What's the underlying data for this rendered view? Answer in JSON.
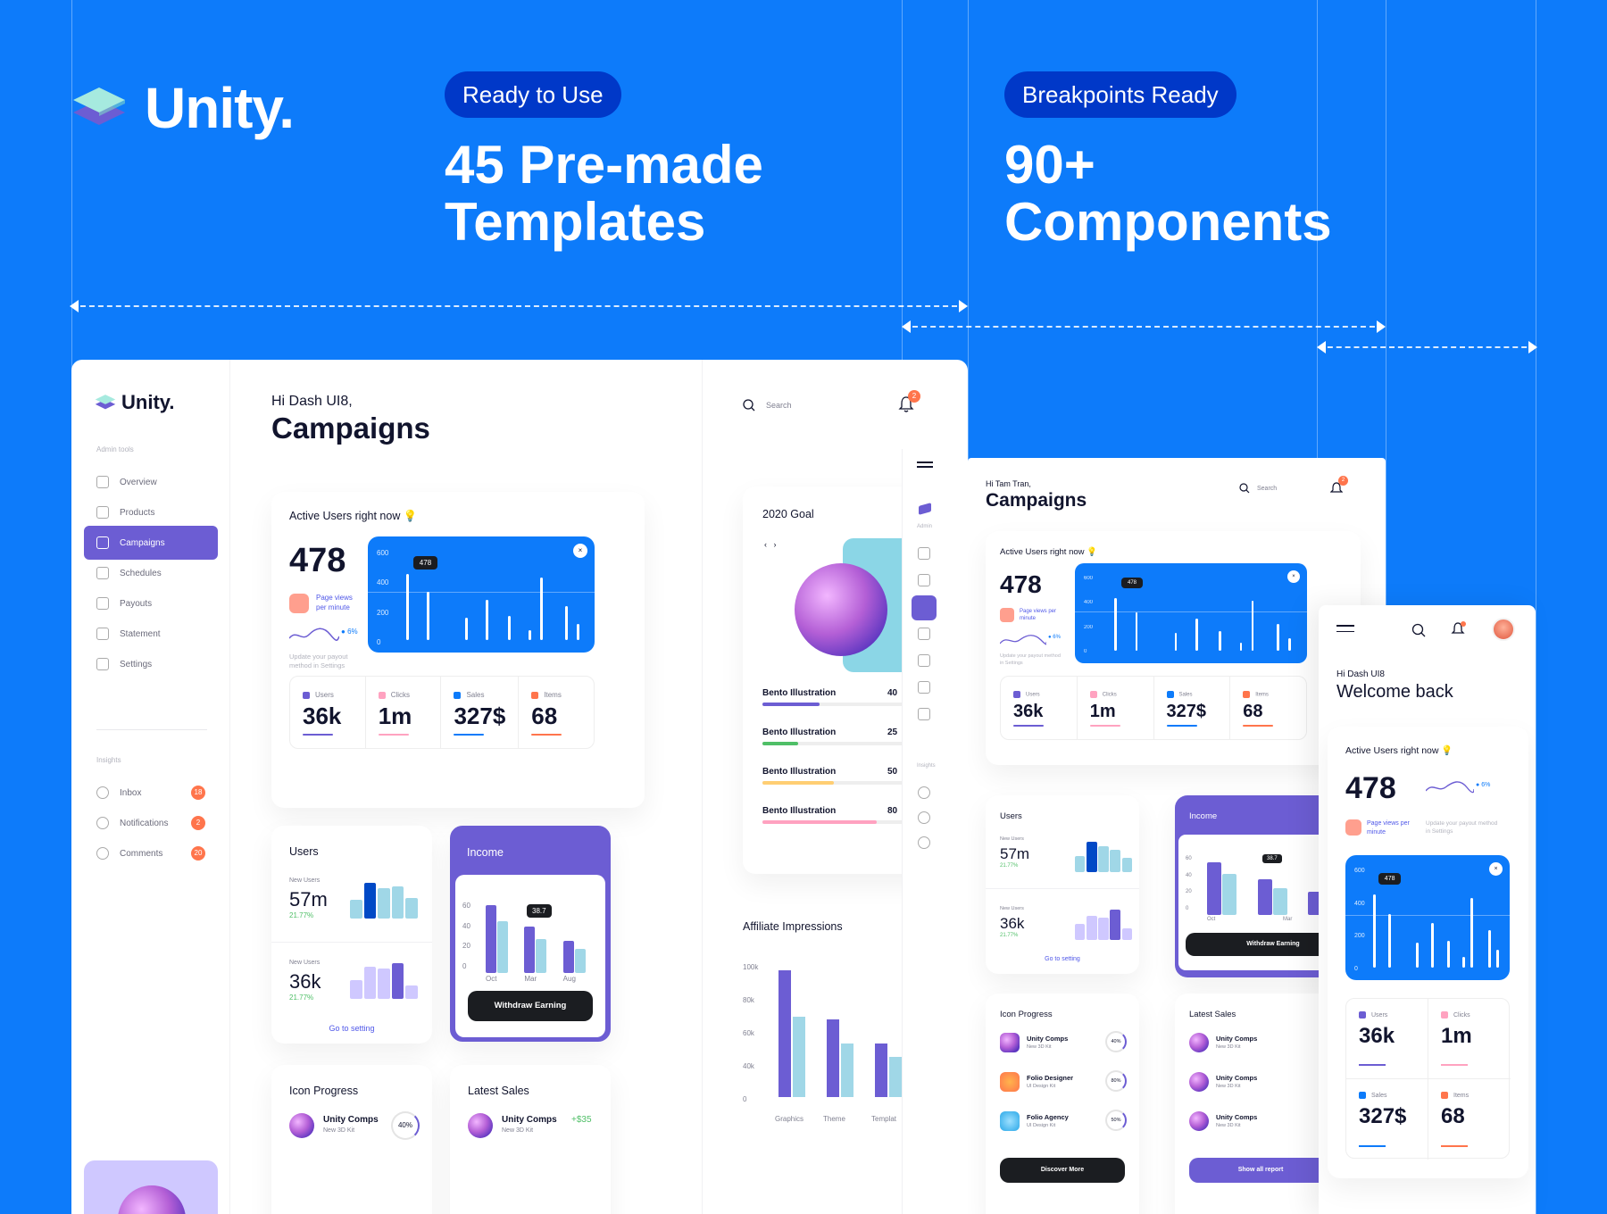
{
  "brand": {
    "name": "Unity.",
    "colors": {
      "blue": "#0D7BFA",
      "purple": "#6C5DD3",
      "dark": "#1B1D21"
    }
  },
  "pills": {
    "left": "Ready to Use",
    "right": "Breakpoints Ready"
  },
  "headlines": {
    "left_1": "45 Pre-made",
    "left_2": "Templates",
    "right_1": "90+",
    "right_2": "Components"
  },
  "desktop": {
    "logo": "Unity.",
    "admin_tools": "Admin tools",
    "nav": [
      "Overview",
      "Products",
      "Campaigns",
      "Schedules",
      "Payouts",
      "Statement",
      "Settings"
    ],
    "insights": "Insights",
    "insight_items": [
      {
        "label": "Inbox",
        "count": "18"
      },
      {
        "label": "Notifications",
        "count": "2"
      },
      {
        "label": "Comments",
        "count": "20"
      }
    ],
    "greeting": "Hi Dash UI8,",
    "title": "Campaigns",
    "search": "Search",
    "notif_count": "2",
    "active_title": "Active Users right now 💡",
    "active_value": "478",
    "page_views": "Page views per minute",
    "trend": "6%",
    "payout_note": "Update your payout method in Settings",
    "y_ticks": [
      "600",
      "400",
      "200",
      "0"
    ],
    "tooltip": "478",
    "stats": [
      {
        "label": "Users",
        "value": "36k",
        "color": "#6C5DD3"
      },
      {
        "label": "Clicks",
        "value": "1m",
        "color": "#FFA2C0"
      },
      {
        "label": "Sales",
        "value": "327$",
        "color": "#0D7BFA"
      },
      {
        "label": "Items",
        "value": "68",
        "color": "#FF754C"
      }
    ],
    "users_title": "Users",
    "new_users": "New Users",
    "users_a": "57m",
    "users_a_pct": "21.77%",
    "users_b": "36k",
    "users_b_pct": "21.77%",
    "go_setting": "Go to setting",
    "income_title": "Income",
    "income_ticks": [
      "60",
      "40",
      "20",
      "0"
    ],
    "income_months": [
      "Oct",
      "Mar",
      "Aug"
    ],
    "income_tip": "38.7",
    "withdraw": "Withdraw Earning",
    "icon_progress": "Icon Progress",
    "latest_sales": "Latest Sales",
    "item_name": "Unity Comps",
    "item_sub": "New 3D Kit",
    "item_pct": "40%",
    "sale_amount": "+$35",
    "goal_title": "2020 Goal",
    "bento": [
      {
        "label": "Bento Illustration",
        "value": "40",
        "color": "#6C5DD3"
      },
      {
        "label": "Bento Illustration",
        "value": "25",
        "color": "#4FBF67"
      },
      {
        "label": "Bento Illustration",
        "value": "50",
        "color": "#FFCE73"
      },
      {
        "label": "Bento Illustration",
        "value": "80",
        "color": "#FFA2C0"
      }
    ],
    "affiliate_title": "Affiliate Impressions",
    "affiliate_ticks": [
      "100k",
      "80k",
      "60k",
      "40k",
      "0"
    ],
    "affiliate_x": [
      "Graphics",
      "Theme",
      "Templat"
    ],
    "mini_admin": "Admin",
    "mini_insights": "Insights"
  },
  "tablet": {
    "greeting": "Hi Tam Tran,",
    "title": "Campaigns",
    "search": "Search",
    "notif_count": "2",
    "active_title": "Active Users right now 💡",
    "active_value": "478",
    "page_views": "Page views per minute",
    "trend": "6%",
    "payout_note": "Update your payout method in Settings",
    "y_ticks": [
      "600",
      "400",
      "200",
      "0"
    ],
    "tooltip": "478",
    "stats": [
      {
        "label": "Users",
        "value": "36k"
      },
      {
        "label": "Clicks",
        "value": "1m"
      },
      {
        "label": "Sales",
        "value": "327$"
      },
      {
        "label": "Items",
        "value": "68"
      }
    ],
    "users_title": "Users",
    "new_users": "New Users",
    "users_a": "57m",
    "users_a_pct": "21.77%",
    "users_b": "36k",
    "users_b_pct": "21.77%",
    "go_setting": "Go to setting",
    "income_title": "Income",
    "income_ticks": [
      "60",
      "40",
      "20",
      "0"
    ],
    "income_months": [
      "Oct",
      "Mar"
    ],
    "income_tip": "38.7",
    "withdraw": "Withdraw Earning",
    "icon_progress": "Icon Progress",
    "latest_sales": "Latest Sales",
    "progress_items": [
      {
        "name": "Unity Comps",
        "sub": "New 3D Kit",
        "pct": "40%"
      },
      {
        "name": "Folio Designer",
        "sub": "UI Design Kit",
        "pct": "80%"
      },
      {
        "name": "Folio Agency",
        "sub": "UI Design Kit",
        "pct": "50%"
      }
    ],
    "sales_items": [
      {
        "name": "Unity Comps",
        "sub": "New 3D Kit"
      },
      {
        "name": "Unity Comps",
        "sub": "New 3D Kit"
      },
      {
        "name": "Unity Comps",
        "sub": "New 3D Kit"
      }
    ],
    "discover": "Discover More",
    "show_report": "Show all report"
  },
  "mobile": {
    "greeting": "Hi Dash UI8",
    "title": "Welcome back",
    "active_title": "Active Users right now 💡",
    "active_value": "478",
    "page_views": "Page views per minute",
    "trend": "6%",
    "payout_note": "Update your payout method in Settings",
    "y_ticks": [
      "600",
      "400",
      "200",
      "0"
    ],
    "tooltip": "478",
    "stats": [
      {
        "label": "Users",
        "value": "36k"
      },
      {
        "label": "Clicks",
        "value": "1m"
      },
      {
        "label": "Sales",
        "value": "327$"
      },
      {
        "label": "Items",
        "value": "68"
      }
    ]
  }
}
